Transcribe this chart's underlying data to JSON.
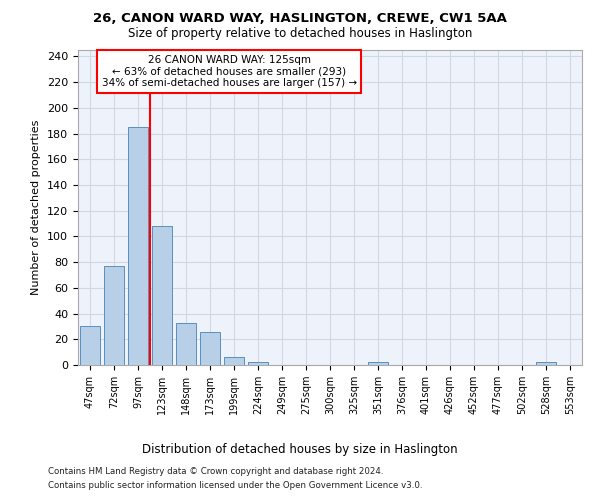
{
  "title1": "26, CANON WARD WAY, HASLINGTON, CREWE, CW1 5AA",
  "title2": "Size of property relative to detached houses in Haslington",
  "xlabel": "Distribution of detached houses by size in Haslington",
  "ylabel": "Number of detached properties",
  "categories": [
    "47sqm",
    "72sqm",
    "97sqm",
    "123sqm",
    "148sqm",
    "173sqm",
    "199sqm",
    "224sqm",
    "249sqm",
    "275sqm",
    "300sqm",
    "325sqm",
    "351sqm",
    "376sqm",
    "401sqm",
    "426sqm",
    "452sqm",
    "477sqm",
    "502sqm",
    "528sqm",
    "553sqm"
  ],
  "values": [
    30,
    77,
    185,
    108,
    33,
    26,
    6,
    2,
    0,
    0,
    0,
    0,
    2,
    0,
    0,
    0,
    0,
    0,
    0,
    2,
    0
  ],
  "bar_color": "#b8cfe8",
  "bar_edge_color": "#5a8fc0",
  "red_line_index": 3,
  "annotation_line1": "26 CANON WARD WAY: 125sqm",
  "annotation_line2": "← 63% of detached houses are smaller (293)",
  "annotation_line3": "34% of semi-detached houses are larger (157) →",
  "annotation_box_color": "white",
  "annotation_box_edge_color": "red",
  "grid_color": "#d0d8e8",
  "background_color": "#eef2fb",
  "footnote1": "Contains HM Land Registry data © Crown copyright and database right 2024.",
  "footnote2": "Contains public sector information licensed under the Open Government Licence v3.0.",
  "ylim_max": 245,
  "yticks": [
    0,
    20,
    40,
    60,
    80,
    100,
    120,
    140,
    160,
    180,
    200,
    220,
    240
  ]
}
